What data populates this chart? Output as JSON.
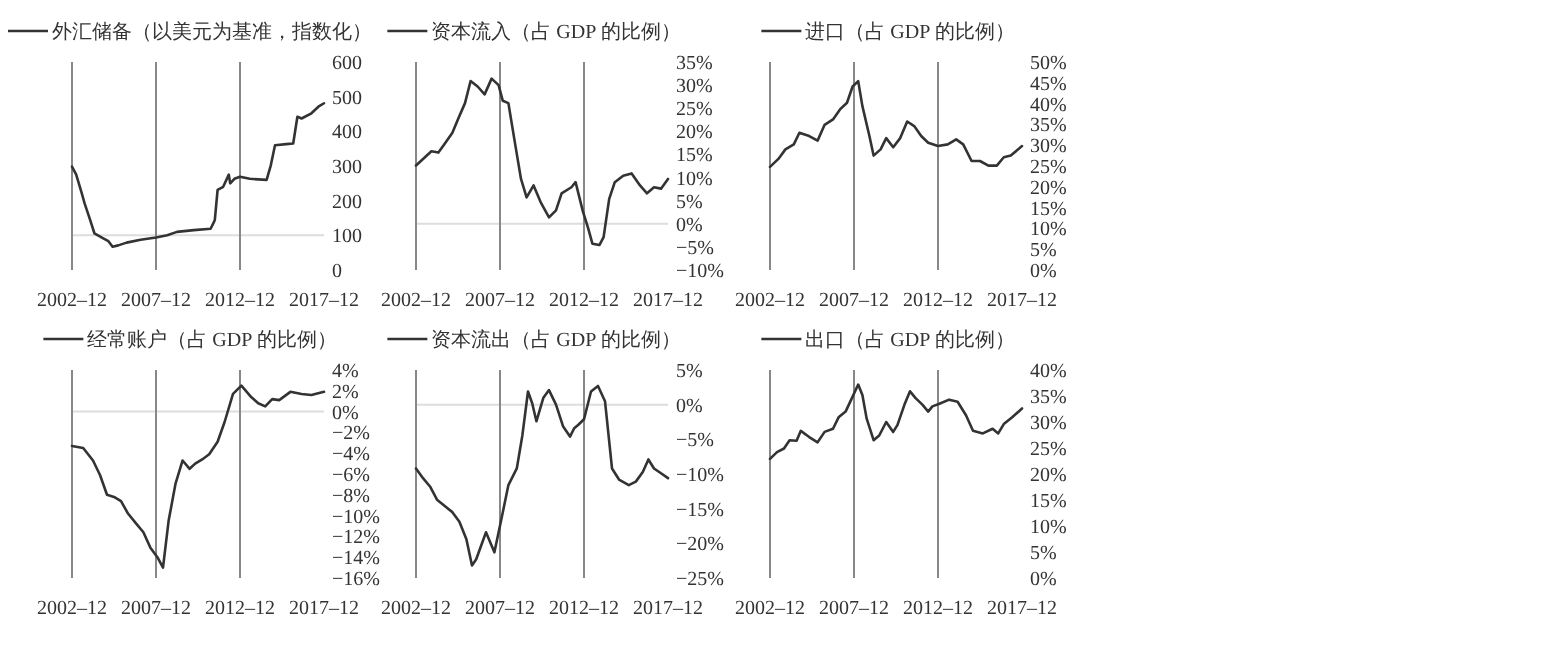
{
  "chart_data": [
    {
      "type": "line",
      "x": [
        "2002-12",
        "2003-03",
        "2003-07",
        "2003-09",
        "2004-01",
        "2004-04",
        "2004-10",
        "2005-02",
        "2005-05",
        "2005-09",
        "2006-03",
        "2007-01",
        "2007-12",
        "2008-08",
        "2009-03",
        "2010-03",
        "2011-03",
        "2011-05",
        "2011-06",
        "2011-08",
        "2011-12",
        "2012-04",
        "2012-05",
        "2012-08",
        "2012-12",
        "2013-07",
        "2014-07",
        "2014-10",
        "2015-01",
        "2015-09",
        "2016-02",
        "2016-05",
        "2016-08",
        "2017-03",
        "2017-08",
        "2017-12"
      ],
      "series": [
        {
          "name": "外汇储备（以美元为基准，指数化）",
          "color": "#333333",
          "values": [
            298,
            275,
            221,
            192,
            144,
            106,
            92,
            83,
            67,
            71,
            79,
            87,
            94,
            100,
            110,
            115,
            119,
            135,
            144,
            231,
            240,
            275,
            250,
            263,
            269,
            263,
            260,
            302,
            360,
            363,
            365,
            442,
            437,
            452,
            471,
            481
          ]
        }
      ],
      "xlim": [
        "2002-12",
        "2017-12"
      ],
      "xticks": [
        {
          "value": "2002-12",
          "label": "2002–12"
        },
        {
          "value": "2007-12",
          "label": "2007–12"
        },
        {
          "value": "2012-12",
          "label": "2012–12"
        },
        {
          "value": "2017-12",
          "label": "2017–12"
        }
      ],
      "ylim": [
        0,
        600
      ],
      "yticks": [
        0,
        100,
        200,
        300,
        400,
        500,
        600
      ],
      "ref_lines": [
        {
          "axis": "y",
          "value": 100,
          "color": "#dddddd"
        },
        {
          "axis": "x",
          "value": "2007-12",
          "color": "#888888"
        },
        {
          "axis": "x",
          "value": "2012-12",
          "color": "#888888"
        }
      ],
      "legend": "top"
    },
    {
      "type": "line",
      "x": [
        "2002-12",
        "2003-06",
        "2003-11",
        "2004-04",
        "2004-08",
        "2005-02",
        "2005-06",
        "2005-11",
        "2006-03",
        "2006-08",
        "2007-01",
        "2007-06",
        "2007-11",
        "2008-02",
        "2008-06",
        "2008-11",
        "2009-03",
        "2009-07",
        "2009-12",
        "2010-05",
        "2010-11",
        "2011-04",
        "2011-08",
        "2012-03",
        "2012-06",
        "2012-11",
        "2013-03",
        "2013-06",
        "2013-11",
        "2014-02",
        "2014-06",
        "2014-10",
        "2015-04",
        "2015-10",
        "2016-04",
        "2016-09",
        "2017-02",
        "2017-07",
        "2017-12"
      ],
      "series": [
        {
          "name": "资本流入（占 GDP 的比例）",
          "color": "#333333",
          "values": [
            12.6,
            14.3,
            15.7,
            15.4,
            17.1,
            19.7,
            22.6,
            26.1,
            30.9,
            29.7,
            28,
            31.4,
            30,
            26.6,
            26.1,
            16.9,
            9.7,
            5.7,
            8.3,
            4.7,
            1.4,
            2.9,
            6.6,
            7.9,
            9,
            2.9,
            -1,
            -4.3,
            -4.6,
            -2.9,
            5.4,
            9,
            10.4,
            10.9,
            8.3,
            6.6,
            7.9,
            7.6,
            9.7
          ]
        }
      ],
      "xlim": [
        "2002-12",
        "2017-12"
      ],
      "xticks": [
        {
          "value": "2002-12",
          "label": "2002–12"
        },
        {
          "value": "2007-12",
          "label": "2007–12"
        },
        {
          "value": "2012-12",
          "label": "2012–12"
        },
        {
          "value": "2017-12",
          "label": "2017–12"
        }
      ],
      "ylim": [
        -10,
        35
      ],
      "yticks": [
        {
          "value": -10,
          "label": "−10%"
        },
        {
          "value": -5,
          "label": "−5%"
        },
        {
          "value": 0,
          "label": "0%"
        },
        {
          "value": 5,
          "label": "5%"
        },
        {
          "value": 10,
          "label": "10%"
        },
        {
          "value": 15,
          "label": "15%"
        },
        {
          "value": 20,
          "label": "20%"
        },
        {
          "value": 25,
          "label": "25%"
        },
        {
          "value": 30,
          "label": "30%"
        },
        {
          "value": 35,
          "label": "35%"
        }
      ],
      "ref_lines": [
        {
          "axis": "y",
          "value": 0,
          "color": "#dddddd"
        },
        {
          "axis": "x",
          "value": "2007-12",
          "color": "#888888"
        },
        {
          "axis": "x",
          "value": "2012-12",
          "color": "#888888"
        }
      ],
      "legend": "top"
    },
    {
      "type": "line",
      "x": [
        "2002-12",
        "2003-06",
        "2003-11",
        "2004-05",
        "2004-09",
        "2005-04",
        "2005-10",
        "2006-03",
        "2006-09",
        "2007-02",
        "2007-07",
        "2007-11",
        "2008-03",
        "2008-06",
        "2008-11",
        "2009-02",
        "2009-07",
        "2009-11",
        "2010-04",
        "2010-09",
        "2011-02",
        "2011-07",
        "2011-12",
        "2012-05",
        "2012-12",
        "2013-07",
        "2014-01",
        "2014-06",
        "2014-12",
        "2015-06",
        "2015-12",
        "2016-06",
        "2016-11",
        "2017-04",
        "2017-12"
      ],
      "series": [
        {
          "name": "进口（占 GDP 的比例）",
          "color": "#333333",
          "values": [
            24.8,
            26.7,
            29,
            30.2,
            33,
            32.2,
            31.1,
            34.9,
            36.2,
            38.6,
            40.2,
            44.1,
            45.4,
            39.4,
            32.2,
            27.5,
            29,
            31.7,
            29.5,
            31.7,
            35.7,
            34.6,
            32.2,
            30.6,
            29.8,
            30.2,
            31.4,
            30.2,
            26.2,
            26.2,
            25.1,
            25.1,
            27.1,
            27.5,
            29.8
          ]
        }
      ],
      "xlim": [
        "2002-12",
        "2017-12"
      ],
      "xticks": [
        {
          "value": "2002-12",
          "label": "2002–12"
        },
        {
          "value": "2007-12",
          "label": "2007–12"
        },
        {
          "value": "2012-12",
          "label": "2012–12"
        },
        {
          "value": "2017-12",
          "label": "2017–12"
        }
      ],
      "ylim": [
        0,
        50
      ],
      "yticks": [
        {
          "value": 0,
          "label": "0%"
        },
        {
          "value": 5,
          "label": "5%"
        },
        {
          "value": 10,
          "label": "10%"
        },
        {
          "value": 15,
          "label": "15%"
        },
        {
          "value": 20,
          "label": "20%"
        },
        {
          "value": 25,
          "label": "25%"
        },
        {
          "value": 30,
          "label": "30%"
        },
        {
          "value": 35,
          "label": "35%"
        },
        {
          "value": 40,
          "label": "40%"
        },
        {
          "value": 45,
          "label": "45%"
        },
        {
          "value": 50,
          "label": "50%"
        }
      ],
      "ref_lines": [
        {
          "axis": "x",
          "value": "2007-12",
          "color": "#888888"
        },
        {
          "axis": "x",
          "value": "2012-12",
          "color": "#888888"
        }
      ],
      "legend": "top"
    },
    {
      "type": "line",
      "x": [
        "2002-12",
        "2003-08",
        "2004-03",
        "2004-08",
        "2005-01",
        "2005-06",
        "2005-11",
        "2006-04",
        "2006-10",
        "2007-03",
        "2007-08",
        "2008-01",
        "2008-05",
        "2008-09",
        "2009-02",
        "2009-07",
        "2009-12",
        "2010-04",
        "2010-09",
        "2011-02",
        "2011-08",
        "2012-01",
        "2012-07",
        "2013-01",
        "2013-08",
        "2014-01",
        "2014-06",
        "2014-11",
        "2015-04",
        "2015-12",
        "2016-08",
        "2017-03",
        "2017-12"
      ],
      "series": [
        {
          "name": "经常账户（占 GDP 的比例）",
          "color": "#333333",
          "values": [
            -3.3,
            -3.5,
            -4.7,
            -6.1,
            -8,
            -8.2,
            -8.6,
            -9.8,
            -10.8,
            -11.6,
            -13.1,
            -14,
            -15,
            -10.5,
            -6.9,
            -4.7,
            -5.5,
            -5,
            -4.6,
            -4.1,
            -2.9,
            -1,
            1.7,
            2.5,
            1.4,
            0.8,
            0.5,
            1.2,
            1.1,
            1.9,
            1.7,
            1.6,
            1.9
          ]
        }
      ],
      "xlim": [
        "2002-12",
        "2017-12"
      ],
      "xticks": [
        {
          "value": "2002-12",
          "label": "2002–12"
        },
        {
          "value": "2007-12",
          "label": "2007–12"
        },
        {
          "value": "2012-12",
          "label": "2012–12"
        },
        {
          "value": "2017-12",
          "label": "2017–12"
        }
      ],
      "ylim": [
        -16,
        4
      ],
      "yticks": [
        {
          "value": -16,
          "label": "−16%"
        },
        {
          "value": -14,
          "label": "−14%"
        },
        {
          "value": -12,
          "label": "−12%"
        },
        {
          "value": -10,
          "label": "−10%"
        },
        {
          "value": -8,
          "label": "−8%"
        },
        {
          "value": -6,
          "label": "−6%"
        },
        {
          "value": -4,
          "label": "−4%"
        },
        {
          "value": -2,
          "label": "−2%"
        },
        {
          "value": 0,
          "label": "0%"
        },
        {
          "value": 2,
          "label": "2%"
        },
        {
          "value": 4,
          "label": "4%"
        }
      ],
      "ref_lines": [
        {
          "axis": "y",
          "value": 0,
          "color": "#dddddd"
        },
        {
          "axis": "x",
          "value": "2007-12",
          "color": "#888888"
        },
        {
          "axis": "x",
          "value": "2012-12",
          "color": "#888888"
        }
      ],
      "legend": "top"
    },
    {
      "type": "line",
      "x": [
        "2002-12",
        "2003-05",
        "2003-10",
        "2004-03",
        "2004-09",
        "2005-02",
        "2005-07",
        "2005-12",
        "2006-04",
        "2006-07",
        "2007-02",
        "2007-08",
        "2008-01",
        "2008-06",
        "2008-12",
        "2009-04",
        "2009-08",
        "2009-11",
        "2010-02",
        "2010-07",
        "2010-11",
        "2011-04",
        "2011-09",
        "2012-02",
        "2012-05",
        "2012-08",
        "2012-12",
        "2013-05",
        "2013-10",
        "2014-03",
        "2014-08",
        "2015-01",
        "2015-08",
        "2016-01",
        "2016-06",
        "2016-10",
        "2017-02",
        "2017-07",
        "2017-12"
      ],
      "series": [
        {
          "name": "资本流出（占 GDP 的比例）",
          "color": "#333333",
          "values": [
            -9.2,
            -10.6,
            -11.8,
            -13.7,
            -14.7,
            -15.5,
            -16.9,
            -19.4,
            -23.2,
            -22.3,
            -18.4,
            -21.3,
            -16.5,
            -11.6,
            -9.2,
            -4.4,
            1.9,
            0.2,
            -2.4,
            1,
            2.1,
            0,
            -3.1,
            -4.6,
            -3.4,
            -2.9,
            -2.1,
            1.9,
            2.7,
            0.5,
            -9.2,
            -10.8,
            -11.6,
            -11.1,
            -9.7,
            -7.9,
            -9.2,
            -9.9,
            -10.6
          ]
        }
      ],
      "xlim": [
        "2002-12",
        "2017-12"
      ],
      "xticks": [
        {
          "value": "2002-12",
          "label": "2002–12"
        },
        {
          "value": "2007-12",
          "label": "2007–12"
        },
        {
          "value": "2012-12",
          "label": "2012–12"
        },
        {
          "value": "2017-12",
          "label": "2017–12"
        }
      ],
      "ylim": [
        -25,
        5
      ],
      "yticks": [
        {
          "value": -25,
          "label": "−25%"
        },
        {
          "value": -20,
          "label": "−20%"
        },
        {
          "value": -15,
          "label": "−15%"
        },
        {
          "value": -10,
          "label": "−10%"
        },
        {
          "value": -5,
          "label": "−5%"
        },
        {
          "value": 0,
          "label": "0%"
        },
        {
          "value": 5,
          "label": "5%"
        }
      ],
      "ref_lines": [
        {
          "axis": "y",
          "value": 0,
          "color": "#dddddd"
        },
        {
          "axis": "x",
          "value": "2007-12",
          "color": "#888888"
        },
        {
          "axis": "x",
          "value": "2012-12",
          "color": "#888888"
        }
      ],
      "legend": "top"
    },
    {
      "type": "line",
      "x": [
        "2002-12",
        "2003-05",
        "2003-10",
        "2004-02",
        "2004-07",
        "2004-10",
        "2005-04",
        "2005-10",
        "2006-03",
        "2006-09",
        "2007-01",
        "2007-06",
        "2007-10",
        "2008-03",
        "2008-06",
        "2008-09",
        "2009-02",
        "2009-06",
        "2009-11",
        "2010-04",
        "2010-07",
        "2010-12",
        "2011-04",
        "2011-08",
        "2012-01",
        "2012-05",
        "2012-08",
        "2013-01",
        "2013-08",
        "2014-02",
        "2014-08",
        "2015-01",
        "2015-08",
        "2016-03",
        "2016-07",
        "2016-11",
        "2017-05",
        "2017-12"
      ],
      "series": [
        {
          "name": "出口（占 GDP 的比例）",
          "color": "#333333",
          "values": [
            22.9,
            24.2,
            24.9,
            26.5,
            26.4,
            28.3,
            27.1,
            26.1,
            28.1,
            28.7,
            30.9,
            32,
            34.3,
            37.2,
            35.2,
            30.7,
            26.5,
            27.4,
            30,
            28.1,
            29.4,
            33.3,
            35.9,
            34.6,
            33.3,
            32,
            33,
            33.5,
            34.3,
            33.9,
            31.3,
            28.3,
            27.8,
            28.7,
            27.8,
            29.6,
            30.9,
            32.6
          ]
        }
      ],
      "xlim": [
        "2002-12",
        "2017-12"
      ],
      "xticks": [
        {
          "value": "2002-12",
          "label": "2002–12"
        },
        {
          "value": "2007-12",
          "label": "2007–12"
        },
        {
          "value": "2012-12",
          "label": "2012–12"
        },
        {
          "value": "2017-12",
          "label": "2017–12"
        }
      ],
      "ylim": [
        0,
        40
      ],
      "yticks": [
        {
          "value": 0,
          "label": "0%"
        },
        {
          "value": 5,
          "label": "5%"
        },
        {
          "value": 10,
          "label": "10%"
        },
        {
          "value": 15,
          "label": "15%"
        },
        {
          "value": 20,
          "label": "20%"
        },
        {
          "value": 25,
          "label": "25%"
        },
        {
          "value": 30,
          "label": "30%"
        },
        {
          "value": 35,
          "label": "35%"
        },
        {
          "value": 40,
          "label": "40%"
        }
      ],
      "ref_lines": [
        {
          "axis": "x",
          "value": "2007-12",
          "color": "#888888"
        },
        {
          "axis": "x",
          "value": "2012-12",
          "color": "#888888"
        }
      ],
      "legend": "top"
    }
  ]
}
